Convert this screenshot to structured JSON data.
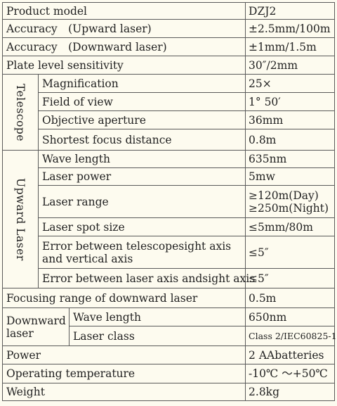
{
  "rows": {
    "product_model": {
      "label": "Product model",
      "value": "DZJ2"
    },
    "accuracy_up": {
      "label": "Accuracy　(Upward laser)",
      "value": "±2.5mm/100m"
    },
    "accuracy_down": {
      "label": "Accuracy　(Downward laser)",
      "value": "±1mm/1.5m"
    },
    "plate_level": {
      "label": "Plate level sensitivity",
      "value": "30″/2mm"
    },
    "telescope": {
      "group": "Telescope",
      "items": [
        {
          "label": "Magnification",
          "value": "25×"
        },
        {
          "label": "Field of view",
          "value": "1° 50′"
        },
        {
          "label": "Objective aperture",
          "value": "36mm"
        },
        {
          "label": "Shortest focus distance",
          "value": "0.8m"
        }
      ]
    },
    "upward_laser": {
      "group": "Upward Laser",
      "items": [
        {
          "label": "Wave length",
          "value": "635nm"
        },
        {
          "label": "Laser power",
          "value": "5mw"
        },
        {
          "label": "Laser range",
          "value_line1": "≥120m(Day)",
          "value_line2": "≥250m(Night)"
        },
        {
          "label": "Laser spot size",
          "value": "≤5mm/80m"
        },
        {
          "label_line1": "Error between telescopesight axis",
          "label_line2": "and vertical axis",
          "value": "≤5″"
        },
        {
          "label": "Error between laser axis andsight axis",
          "value": "≤5″"
        }
      ]
    },
    "focusing_range": {
      "label": "Focusing range of downward laser",
      "value": "0.5m"
    },
    "downward_laser": {
      "group_line1": "Downward",
      "group_line2": "laser",
      "items": [
        {
          "label": "Wave length",
          "value": "650nm"
        },
        {
          "label": "Laser class",
          "value": "Class 2/IEC60825-1"
        }
      ]
    },
    "power": {
      "label": "Power",
      "value": "2 AAbatteries"
    },
    "operating_temp": {
      "label": "Operating temperature",
      "value": "-10℃ ～+50℃"
    },
    "weight": {
      "label": "Weight",
      "value": "2.8kg"
    }
  }
}
